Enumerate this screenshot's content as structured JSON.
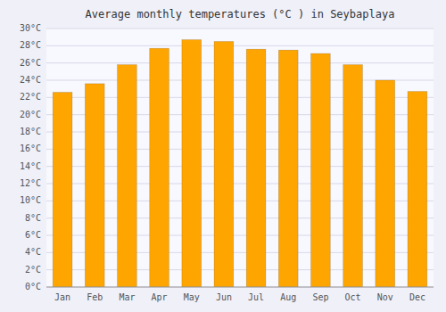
{
  "chart_data": {
    "type": "bar",
    "title": "Average monthly temperatures (°C ) in Seybaplaya",
    "categories": [
      "Jan",
      "Feb",
      "Mar",
      "Apr",
      "May",
      "Jun",
      "Jul",
      "Aug",
      "Sep",
      "Oct",
      "Nov",
      "Dec"
    ],
    "values": [
      22.6,
      23.6,
      25.8,
      27.7,
      28.7,
      28.5,
      27.6,
      27.5,
      27.1,
      25.8,
      24.0,
      22.7
    ],
    "color": "#FFA500",
    "ylim": [
      0,
      30
    ],
    "yticks": [
      {
        "value": 0,
        "label": "0°C"
      },
      {
        "value": 2,
        "label": "2°C"
      },
      {
        "value": 4,
        "label": "4°C"
      },
      {
        "value": 6,
        "label": "6°C"
      },
      {
        "value": 8,
        "label": "8°C"
      },
      {
        "value": 10,
        "label": "10°C"
      },
      {
        "value": 12,
        "label": "12°C"
      },
      {
        "value": 14,
        "label": "14°C"
      },
      {
        "value": 16,
        "label": "16°C"
      },
      {
        "value": 18,
        "label": "18°C"
      },
      {
        "value": 20,
        "label": "20°C"
      },
      {
        "value": 22,
        "label": "22°C"
      },
      {
        "value": 24,
        "label": "24°C"
      },
      {
        "value": 26,
        "label": "26°C"
      },
      {
        "value": 28,
        "label": "28°C"
      },
      {
        "value": 30,
        "label": "30°C"
      }
    ],
    "grid": true
  }
}
